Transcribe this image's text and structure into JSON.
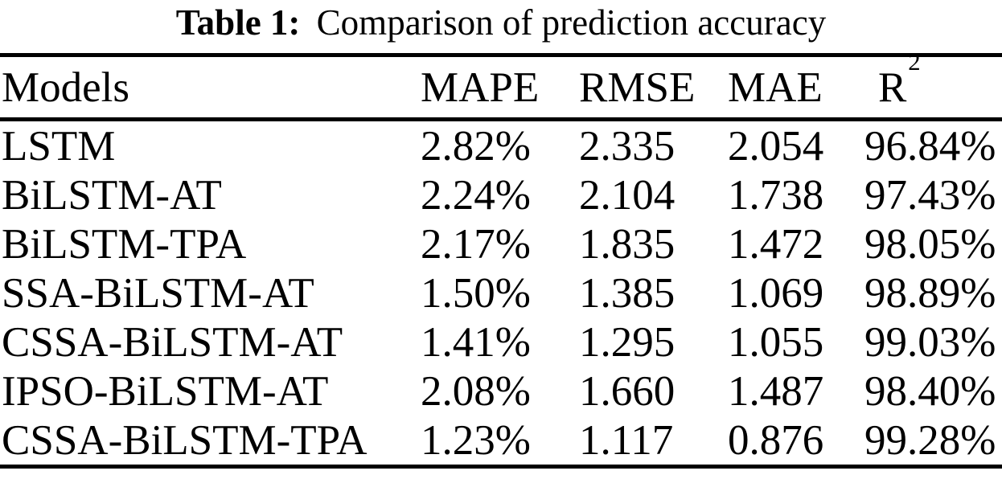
{
  "page": {
    "background_color": "#ffffff",
    "text_color": "#000000"
  },
  "caption": {
    "label": "Table 1:",
    "text": "Comparison of prediction accuracy"
  },
  "table": {
    "headers": {
      "models": "Models",
      "mape": "MAPE",
      "rmse": "RMSE",
      "mae": "MAE",
      "r2_base": "R",
      "r2_sup": "2"
    },
    "rows": [
      {
        "model": "LSTM",
        "mape": "2.82%",
        "rmse": "2.335",
        "mae": "2.054",
        "r2": "96.84%"
      },
      {
        "model": "BiLSTM-AT",
        "mape": "2.24%",
        "rmse": "2.104",
        "mae": "1.738",
        "r2": "97.43%"
      },
      {
        "model": "BiLSTM-TPA",
        "mape": "2.17%",
        "rmse": "1.835",
        "mae": "1.472",
        "r2": "98.05%"
      },
      {
        "model": "SSA-BiLSTM-AT",
        "mape": "1.50%",
        "rmse": "1.385",
        "mae": "1.069",
        "r2": "98.89%"
      },
      {
        "model": "CSSA-BiLSTM-AT",
        "mape": "1.41%",
        "rmse": "1.295",
        "mae": "1.055",
        "r2": "99.03%"
      },
      {
        "model": "IPSO-BiLSTM-AT",
        "mape": "2.08%",
        "rmse": "1.660",
        "mae": "1.487",
        "r2": "98.40%"
      },
      {
        "model": "CSSA-BiLSTM-TPA",
        "mape": "1.23%",
        "rmse": "1.117",
        "mae": "0.876",
        "r2": "99.28%"
      }
    ]
  }
}
